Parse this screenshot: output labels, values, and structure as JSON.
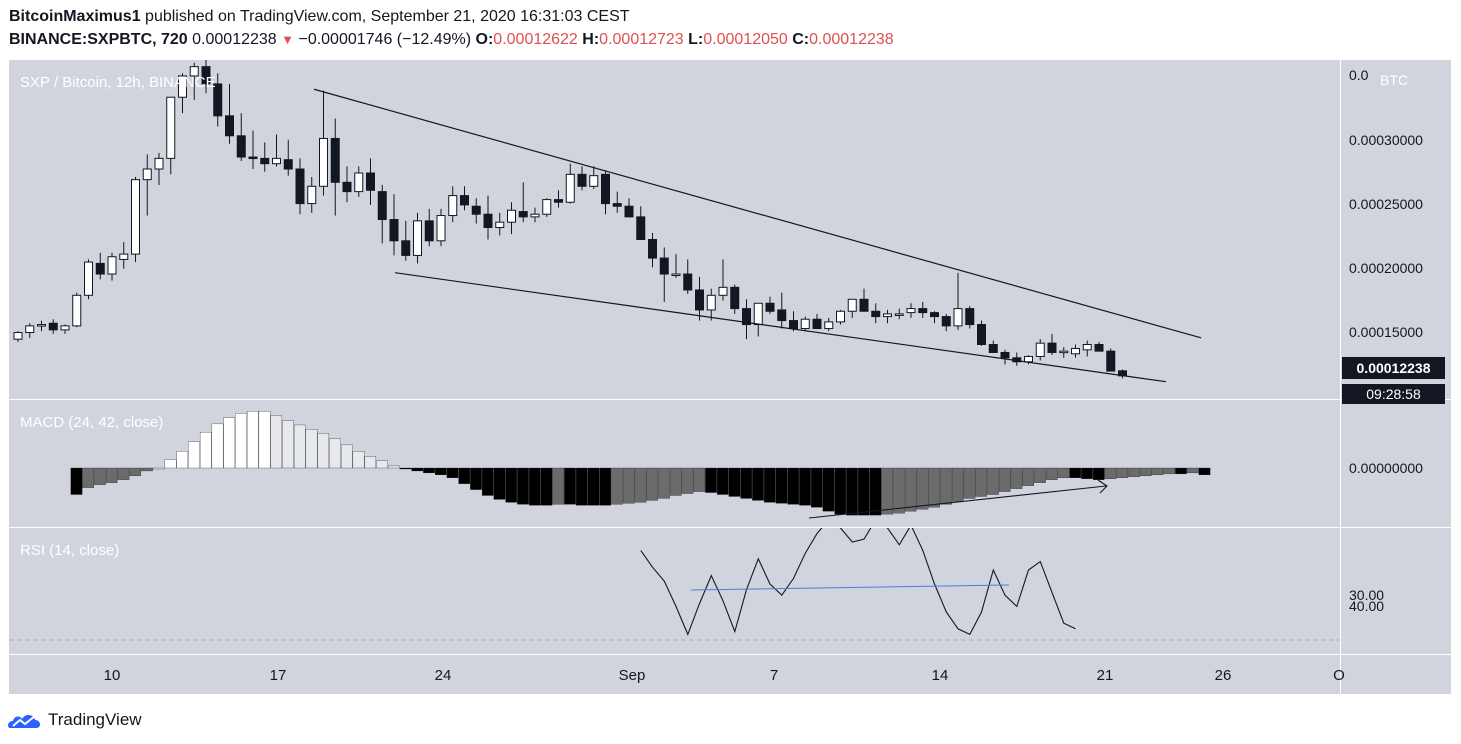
{
  "header": {
    "author": "BitcoinMaximus1",
    "published_text": "published on TradingView.com, September 21, 2020 16:31:03 CEST",
    "symbol": "BINANCE:SXPBTC, 720",
    "last_price": "0.00012238",
    "change_arrow": "▼",
    "change": "−0.00001746 (−12.49%)",
    "o_label": "O:",
    "o_value": "0.00012622",
    "h_label": "H:",
    "h_value": "0.00012723",
    "l_label": "L:",
    "l_value": "0.00012050",
    "c_label": "C:",
    "c_value": "0.00012238"
  },
  "legends": {
    "main": "SXP / Bitcoin, 12h, BINANCE",
    "macd": "MACD (24, 42, close)",
    "rsi": "RSI (14, close)"
  },
  "price_axis": {
    "unit": "BTC",
    "ticks": [
      "0.0",
      "0.00030000",
      "0.00025000",
      "0.00020000",
      "0.00015000"
    ],
    "last_price_tag": "0.00012238",
    "countdown_tag": "09:28:58",
    "macd_tick": "0.00000000",
    "rsi_ticks": [
      "30.00",
      "40.00"
    ]
  },
  "time_axis": {
    "ticks": [
      "10",
      "17",
      "24",
      "Sep",
      "7",
      "14",
      "21",
      "26",
      "O"
    ]
  },
  "footer": {
    "brand": "TradingView"
  },
  "colors": {
    "up_body": "#ffffff",
    "down_body": "#131722",
    "background": "#d1d4dc",
    "accent_red": "#e04f4f",
    "rsi_divergence": "#4a7fd6"
  },
  "chart_data": [
    {
      "type": "candlestick",
      "title": "SXP / Bitcoin, 12h, BINANCE",
      "ylabel": "BTC",
      "ylim": [
        0.000105,
        0.00036
      ],
      "candles": [
        [
          0.00015,
          0.000156,
          0.000148,
          0.000155
        ],
        [
          0.000155,
          0.000162,
          0.000151,
          0.00016
        ],
        [
          0.00016,
          0.000164,
          0.000156,
          0.000161
        ],
        [
          0.000162,
          0.000165,
          0.000154,
          0.000157
        ],
        [
          0.000157,
          0.000161,
          0.000154,
          0.00016
        ],
        [
          0.00016,
          0.000185,
          0.000159,
          0.000183
        ],
        [
          0.000183,
          0.00021,
          0.00018,
          0.000208
        ],
        [
          0.000207,
          0.000215,
          0.000195,
          0.000199
        ],
        [
          0.000199,
          0.000215,
          0.000194,
          0.000212
        ],
        [
          0.00021,
          0.000223,
          0.000203,
          0.000214
        ],
        [
          0.000214,
          0.000272,
          0.000208,
          0.00027
        ],
        [
          0.00027,
          0.000289,
          0.000243,
          0.000278
        ],
        [
          0.000278,
          0.00029,
          0.000266,
          0.000286
        ],
        [
          0.000286,
          0.00033,
          0.000274,
          0.000332
        ],
        [
          0.000332,
          0.00035,
          0.00032,
          0.000348
        ],
        [
          0.000348,
          0.000358,
          0.00033,
          0.000355
        ],
        [
          0.000355,
          0.00036,
          0.000335,
          0.000342
        ],
        [
          0.000342,
          0.00035,
          0.00031,
          0.000318
        ],
        [
          0.000318,
          0.000342,
          0.000297,
          0.000303
        ],
        [
          0.000303,
          0.00032,
          0.000284,
          0.000287
        ],
        [
          0.000287,
          0.000307,
          0.000278,
          0.000286
        ],
        [
          0.000286,
          0.000298,
          0.000276,
          0.000282
        ],
        [
          0.000282,
          0.000304,
          0.00028,
          0.000286
        ],
        [
          0.000285,
          0.0003,
          0.000273,
          0.000278
        ],
        [
          0.000278,
          0.000286,
          0.000244,
          0.000252
        ],
        [
          0.000252,
          0.000272,
          0.000245,
          0.000265
        ],
        [
          0.000265,
          0.000337,
          0.000258,
          0.000301
        ],
        [
          0.000301,
          0.000316,
          0.000243,
          0.000268
        ],
        [
          0.000268,
          0.00028,
          0.000253,
          0.000261
        ],
        [
          0.000261,
          0.00028,
          0.000257,
          0.000275
        ],
        [
          0.000275,
          0.000286,
          0.000251,
          0.000262
        ],
        [
          0.000261,
          0.000266,
          0.000222,
          0.00024
        ],
        [
          0.00024,
          0.000259,
          0.000213,
          0.000224
        ],
        [
          0.000224,
          0.000239,
          0.000209,
          0.000213
        ],
        [
          0.000213,
          0.000245,
          0.000207,
          0.000239
        ],
        [
          0.000239,
          0.000248,
          0.00022,
          0.000224
        ],
        [
          0.000224,
          0.000248,
          0.00022,
          0.000243
        ],
        [
          0.000243,
          0.000265,
          0.000238,
          0.000258
        ],
        [
          0.000258,
          0.000265,
          0.000247,
          0.000251
        ],
        [
          0.00025,
          0.000256,
          0.000237,
          0.000244
        ],
        [
          0.000244,
          0.000258,
          0.000225,
          0.000234
        ],
        [
          0.000234,
          0.000245,
          0.000228,
          0.000238
        ],
        [
          0.000238,
          0.000253,
          0.000229,
          0.000247
        ],
        [
          0.000246,
          0.000268,
          0.000238,
          0.000242
        ],
        [
          0.000242,
          0.000249,
          0.000238,
          0.000244
        ],
        [
          0.000244,
          0.000256,
          0.000242,
          0.000255
        ],
        [
          0.000255,
          0.000262,
          0.000249,
          0.000253
        ],
        [
          0.000253,
          0.000282,
          0.000252,
          0.000274
        ],
        [
          0.000274,
          0.00028,
          0.000262,
          0.000265
        ],
        [
          0.000265,
          0.00028,
          0.000263,
          0.000273
        ],
        [
          0.000274,
          0.000276,
          0.000244,
          0.000252
        ],
        [
          0.000252,
          0.000261,
          0.000245,
          0.00025
        ],
        [
          0.00025,
          0.000256,
          0.000242,
          0.000242
        ],
        [
          0.000242,
          0.00025,
          0.000225,
          0.000225
        ],
        [
          0.000225,
          0.00023,
          0.000204,
          0.000211
        ],
        [
          0.000211,
          0.000219,
          0.000178,
          0.000199
        ],
        [
          0.000199,
          0.000214,
          0.000196,
          0.000199
        ],
        [
          0.000199,
          0.00021,
          0.000184,
          0.000187
        ],
        [
          0.000187,
          0.000197,
          0.000164,
          0.000172
        ],
        [
          0.000172,
          0.000188,
          0.000164,
          0.000183
        ],
        [
          0.000183,
          0.00021,
          0.000179,
          0.000189
        ],
        [
          0.000189,
          0.000191,
          0.000169,
          0.000173
        ],
        [
          0.000173,
          0.00018,
          0.00015,
          0.000161
        ],
        [
          0.000161,
          0.000177,
          0.000152,
          0.000177
        ],
        [
          0.000177,
          0.000182,
          0.000169,
          0.000171
        ],
        [
          0.000172,
          0.000185,
          0.000158,
          0.000164
        ],
        [
          0.000164,
          0.000171,
          0.000156,
          0.000158
        ],
        [
          0.000158,
          0.000167,
          0.000156,
          0.000165
        ],
        [
          0.000165,
          0.000169,
          0.000158,
          0.000158
        ],
        [
          0.000158,
          0.000166,
          0.000156,
          0.000163
        ],
        [
          0.000163,
          0.000172,
          0.000161,
          0.000171
        ],
        [
          0.000171,
          0.00018,
          0.000166,
          0.00018
        ],
        [
          0.00018,
          0.000188,
          0.000171,
          0.000171
        ],
        [
          0.000171,
          0.000177,
          0.000162,
          0.000167
        ],
        [
          0.000167,
          0.000172,
          0.000162,
          0.000169
        ],
        [
          0.000169,
          0.000173,
          0.000165,
          0.000169
        ],
        [
          0.00017,
          0.000177,
          0.000166,
          0.000173
        ],
        [
          0.000173,
          0.000178,
          0.000166,
          0.00017
        ],
        [
          0.00017,
          0.000171,
          0.000162,
          0.000167
        ],
        [
          0.000167,
          0.000169,
          0.000156,
          0.00016
        ],
        [
          0.00016,
          0.0002,
          0.000157,
          0.000173
        ],
        [
          0.000173,
          0.000175,
          0.000158,
          0.000161
        ],
        [
          0.000161,
          0.000164,
          0.000145,
          0.000146
        ],
        [
          0.000146,
          0.000149,
          0.00014,
          0.00014
        ],
        [
          0.00014,
          0.000142,
          0.000131,
          0.000136
        ],
        [
          0.000136,
          0.00014,
          0.00013,
          0.000133
        ],
        [
          0.000133,
          0.000138,
          0.000131,
          0.000137
        ],
        [
          0.000137,
          0.00015,
          0.000134,
          0.000147
        ],
        [
          0.000147,
          0.000154,
          0.000138,
          0.00014
        ],
        [
          0.00014,
          0.000144,
          0.000136,
          0.000141
        ],
        [
          0.000139,
          0.000146,
          0.000136,
          0.000143
        ],
        [
          0.000142,
          0.000149,
          0.000137,
          0.000146
        ],
        [
          0.000146,
          0.000148,
          0.000142,
          0.000141
        ],
        [
          0.000141,
          0.000143,
          0.000128,
          0.000126
        ],
        [
          0.0001262,
          0.0001272,
          0.0001205,
          0.0001224
        ]
      ],
      "trendlines": [
        {
          "from": [
            0.0,
            0.000338
          ],
          "to": [
            0.0,
            0.000151
          ],
          "note": ""
        },
        {
          "from": [
            0.0,
            0.0002
          ],
          "to": [
            0.0,
            0.000118
          ],
          "note": ""
        }
      ]
    },
    {
      "type": "bar",
      "title": "MACD (24, 42, close)",
      "zero_label": "0.00000000",
      "histogram": [
        -27,
        -20,
        -17,
        -15,
        -12,
        -8,
        -3,
        0,
        8,
        16,
        25,
        34,
        42,
        48,
        52,
        54,
        54,
        50,
        45,
        41,
        37,
        33,
        28,
        22,
        16,
        11,
        7,
        2,
        -1,
        -3,
        -5,
        -7,
        -10,
        -16,
        -22,
        -28,
        -32,
        -35,
        -37,
        -38,
        -38,
        -37,
        -37,
        -38,
        -38,
        -38,
        -37,
        -36,
        -35,
        -33,
        -31,
        -28,
        -26,
        -24,
        -25,
        -27,
        -29,
        -31,
        -33,
        -35,
        -36,
        -37,
        -38,
        -40,
        -44,
        -47,
        -48,
        -48,
        -48,
        -47,
        -46,
        -44,
        -42,
        -40,
        -37,
        -34,
        -31,
        -29,
        -27,
        -24,
        -21,
        -18,
        -15,
        -12,
        -10,
        -10,
        -11,
        -12,
        -11,
        -10,
        -9,
        -8,
        -7,
        -6,
        -6,
        -5,
        -7
      ],
      "ylim": [
        -55,
        60
      ]
    },
    {
      "type": "line",
      "title": "RSI (14, close)",
      "ylim": [
        25,
        70
      ],
      "ticks": [
        30,
        40
      ],
      "x_start_index": 53,
      "values": [
        62,
        56,
        51,
        42,
        32,
        43,
        53,
        44,
        33,
        48,
        59,
        50,
        46,
        52,
        61,
        68,
        73,
        70,
        65,
        66,
        73,
        70,
        64,
        71,
        62,
        50,
        40,
        34,
        32,
        40,
        55,
        46,
        42,
        55,
        58,
        47,
        36,
        34
      ]
    }
  ]
}
